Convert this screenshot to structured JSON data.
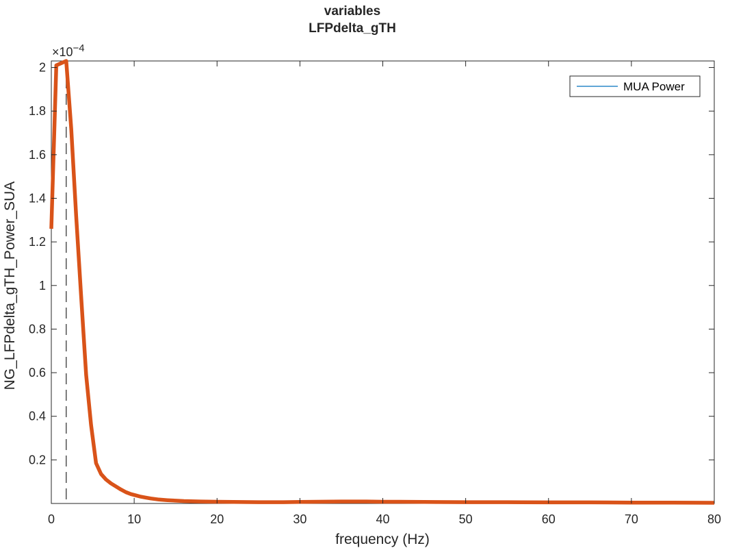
{
  "chart_data": {
    "type": "line",
    "title": [
      "variables",
      "LFPdelta_gTH"
    ],
    "xlabel": "frequency (Hz)",
    "ylabel": "NG_LFPdelta_gTH_Power_SUA",
    "y_exponent_label": "×10",
    "y_exponent": "−4",
    "xlim": [
      0,
      80
    ],
    "ylim": [
      0,
      2.03
    ],
    "x_ticks": [
      0,
      10,
      20,
      30,
      40,
      50,
      60,
      70,
      80
    ],
    "y_ticks": [
      0.2,
      0.4,
      0.6,
      0.8,
      1,
      1.2,
      1.4,
      1.6,
      1.8,
      2
    ],
    "x_tick_labels": [
      "0",
      "10",
      "20",
      "30",
      "40",
      "50",
      "60",
      "70",
      "80"
    ],
    "y_tick_labels": [
      "0.2",
      "0.4",
      "0.6",
      "0.8",
      "1",
      "1.2",
      "1.4",
      "1.6",
      "1.8",
      "2"
    ],
    "grid": false,
    "box": true,
    "legend": {
      "position": "top-right",
      "entries": [
        {
          "label": "MUA Power",
          "color": "#0072BD"
        }
      ]
    },
    "vline": {
      "x": 1.8,
      "style": "dashed",
      "color": "#262626"
    },
    "series": [
      {
        "color": "#D95319",
        "x": [
          0,
          0.6,
          1.2,
          1.8,
          2.4,
          3.0,
          3.6,
          4.2,
          4.8,
          5.4,
          6.0,
          6.6,
          7.2,
          7.8,
          8.4,
          9.0,
          9.6,
          10.2,
          10.8,
          11.4,
          12,
          13,
          14,
          15,
          16,
          18,
          20,
          22,
          25,
          28,
          30,
          32,
          35,
          38,
          40,
          42,
          45,
          50,
          55,
          60,
          65,
          70,
          75,
          80
        ],
        "y": [
          1.26,
          2.01,
          2.02,
          2.03,
          1.72,
          1.32,
          0.95,
          0.59,
          0.36,
          0.185,
          0.135,
          0.11,
          0.092,
          0.078,
          0.064,
          0.052,
          0.043,
          0.037,
          0.031,
          0.027,
          0.023,
          0.018,
          0.015,
          0.013,
          0.011,
          0.009,
          0.008,
          0.007,
          0.006,
          0.006,
          0.007,
          0.008,
          0.009,
          0.009,
          0.008,
          0.008,
          0.007,
          0.006,
          0.006,
          0.005,
          0.005,
          0.004,
          0.004,
          0.003
        ]
      }
    ]
  }
}
